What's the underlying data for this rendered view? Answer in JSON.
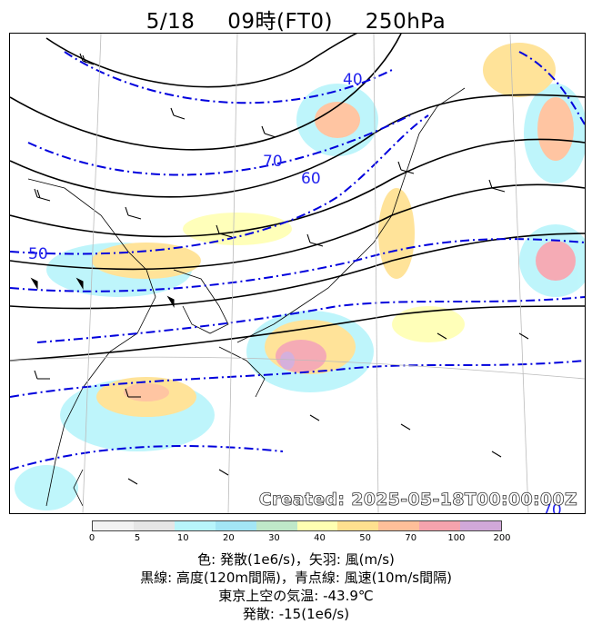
{
  "title": {
    "date": "5/18",
    "time": "09時(FT0)",
    "level": "250hPa"
  },
  "map": {
    "created": "Created: 2025-05-18T00:00:00Z",
    "isotach_labels": [
      "40",
      "60",
      "70",
      "50",
      "70"
    ]
  },
  "colorbar": {
    "ticks": [
      "0",
      "5",
      "10",
      "20",
      "30",
      "40",
      "50",
      "70",
      "100",
      "200"
    ],
    "colors": [
      "#f2f2f2",
      "#e6e6e6",
      "#b8f5fb",
      "#a3e6f5",
      "#bfe8c9",
      "#ffffb2",
      "#ffe08f",
      "#ffbf99",
      "#f5a3ad",
      "#d1a8d9"
    ]
  },
  "captions": {
    "line1": "色: 発散(1e6/s)，矢羽: 風(m/s)",
    "line2": "黒線: 高度(120m間隔)，青点線: 風速(10m/s間隔)",
    "line3": "東京上空の気温: -43.9℃",
    "line4": "発散: -15(1e6/s)"
  }
}
